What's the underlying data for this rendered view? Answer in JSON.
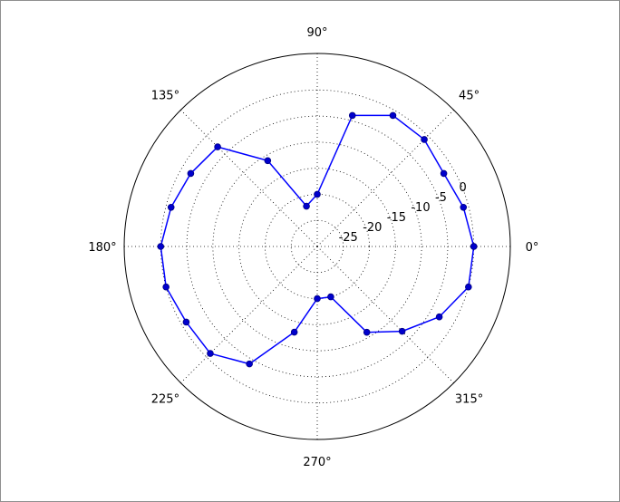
{
  "colors": {
    "series": "#0000ff",
    "marker_fill": "#0000cc",
    "marker_edge": "#000080",
    "grid": "#000000",
    "frame": "#000000",
    "background": "#ffffff"
  },
  "chart_data": {
    "type": "line",
    "projection": "polar",
    "title": "",
    "xlabel": "",
    "ylabel": "",
    "rlim": [
      -30,
      7
    ],
    "grid": true,
    "theta_tick_labels": [
      "0°",
      "45°",
      "90°",
      "135°",
      "180°",
      "225°",
      "270°",
      "315°"
    ],
    "theta_ticks_deg": [
      0,
      45,
      90,
      135,
      180,
      225,
      270,
      315
    ],
    "r_ticks": [
      -25,
      -20,
      -15,
      -10,
      -5,
      0
    ],
    "r_tick_labels": [
      "-25",
      "-20",
      "-15",
      "-10",
      "-5",
      "0"
    ],
    "series": [
      {
        "marker": "circle",
        "theta_deg": [
          0,
          15,
          30,
          45,
          60,
          75,
          90,
          105,
          120,
          135,
          150,
          165,
          180,
          195,
          210,
          225,
          240,
          255,
          270,
          285,
          300,
          315,
          330,
          345,
          360
        ],
        "r": [
          0,
          -1,
          -2,
          -1,
          -1,
          -4,
          -20,
          -22,
          -11,
          -3,
          -2,
          -1,
          0,
          0,
          -1,
          -1,
          -4,
          -13,
          -20,
          -20,
          -11,
          -7,
          -3,
          0,
          0
        ]
      }
    ]
  }
}
